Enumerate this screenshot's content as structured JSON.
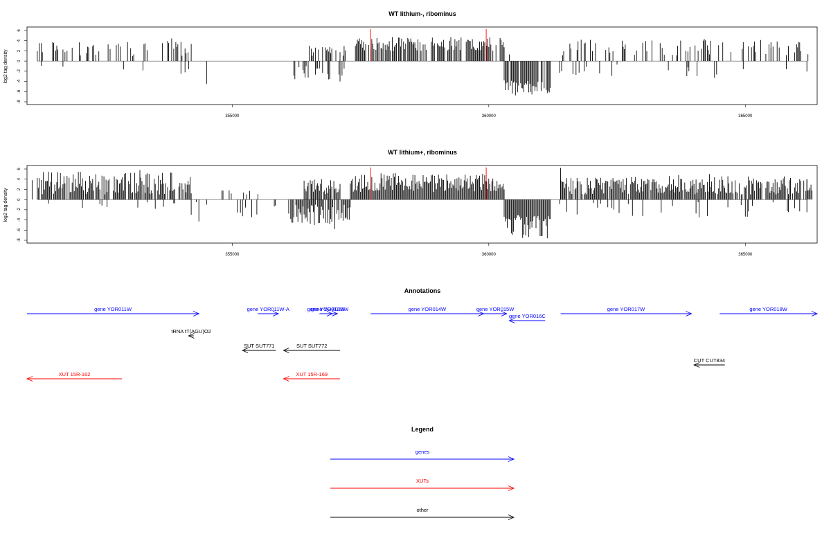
{
  "chart_data": [
    {
      "type": "bar",
      "title": "WT lithium-, ribominus",
      "ylabel": "log2 tag density",
      "xlim": [
        351000,
        366400
      ],
      "ylim": [
        -8,
        6
      ],
      "xticks": [
        "355000",
        "360000",
        "365000"
      ],
      "xtick_values": [
        355000,
        360000,
        365000
      ],
      "yticks": [
        "-8",
        "-6",
        "-4",
        "-2",
        "0",
        "2",
        "4",
        "6"
      ],
      "ytick_values": [
        -8,
        -6,
        -4,
        -2,
        0,
        2,
        4,
        6
      ],
      "bar_color": "#000000",
      "highlight_color": "#ff0000",
      "highlights": [
        {
          "x": 357700,
          "y": 6.3
        },
        {
          "x": 359950,
          "y": 6.3
        }
      ],
      "positive": {
        "note": "forward strand tag density per position",
        "regions": [
          [
            351200,
            354200,
            0.25,
            1,
            4.5,
            11
          ],
          [
            357400,
            360300,
            0.75,
            2,
            4.7,
            23
          ],
          [
            361400,
            366300,
            0.25,
            1,
            4.2,
            37
          ],
          [
            356500,
            357200,
            0.5,
            1,
            3.0,
            41
          ]
        ],
        "spikes": [
          [
            351500,
            3.7
          ],
          [
            352200,
            2.7
          ],
          [
            353300,
            3.5
          ],
          [
            353900,
            3.7
          ],
          [
            358900,
            4.6
          ],
          [
            360400,
            1.3
          ],
          [
            363000,
            3.6
          ],
          [
            364200,
            4.3
          ],
          [
            365500,
            3.7
          ],
          [
            366000,
            3.3
          ]
        ]
      },
      "negative": {
        "note": "reverse strand tag density per position",
        "regions": [
          [
            360300,
            361200,
            0.75,
            -3.5,
            -7.0,
            53
          ],
          [
            356200,
            357200,
            0.3,
            -1.0,
            -4.0,
            59
          ],
          [
            351200,
            354300,
            0.05,
            -0.5,
            -2.5,
            61
          ],
          [
            361300,
            366300,
            0.06,
            -0.5,
            -3.0,
            67
          ]
        ],
        "spikes": [
          [
            351700,
            -1.1
          ],
          [
            354000,
            -2.5
          ],
          [
            354150,
            -1.6
          ],
          [
            354500,
            -4.5
          ],
          [
            356300,
            -1.2
          ],
          [
            356900,
            -3.5
          ],
          [
            357100,
            -4.0
          ],
          [
            362400,
            -2.9
          ],
          [
            363500,
            -1.8
          ],
          [
            364400,
            -3.3
          ],
          [
            365800,
            -1.6
          ]
        ]
      }
    },
    {
      "type": "bar",
      "title": "WT lithium+, ribominus",
      "ylabel": "log2 tag density",
      "xlim": [
        351000,
        366400
      ],
      "ylim": [
        -8,
        6
      ],
      "xticks": [
        "355000",
        "360000",
        "365000"
      ],
      "xtick_values": [
        355000,
        360000,
        365000
      ],
      "yticks": [
        "-8",
        "-6",
        "-4",
        "-2",
        "0",
        "2",
        "4",
        "6"
      ],
      "ytick_values": [
        -8,
        -6,
        -4,
        -2,
        0,
        2,
        4,
        6
      ],
      "bar_color": "#000000",
      "highlight_color": "#ff0000",
      "highlights": [
        {
          "x": 357700,
          "y": 6.3
        },
        {
          "x": 359950,
          "y": 6.3
        }
      ],
      "positive": {
        "note": "forward strand tag density per position",
        "regions": [
          [
            351200,
            354200,
            0.8,
            1,
            5.5,
            71
          ],
          [
            356400,
            357100,
            0.85,
            1,
            4.0,
            73
          ],
          [
            357300,
            360300,
            1.0,
            1.5,
            5.2,
            79
          ],
          [
            361400,
            366300,
            0.9,
            1,
            4.6,
            83
          ],
          [
            354400,
            355500,
            0.15,
            0.5,
            2.5,
            89
          ]
        ],
        "spikes": [
          [
            351100,
            3.8
          ],
          [
            351650,
            5.2
          ],
          [
            353200,
            5.8
          ],
          [
            361400,
            6.2
          ],
          [
            363700,
            4.8
          ],
          [
            364300,
            5.0
          ],
          [
            365700,
            3.8
          ],
          [
            366200,
            4.0
          ]
        ]
      },
      "negative": {
        "note": "reverse strand tag density per position",
        "regions": [
          [
            360300,
            361200,
            1.0,
            -3.0,
            -8.0,
            97
          ],
          [
            356100,
            357300,
            0.9,
            -1.0,
            -5.0,
            101
          ],
          [
            355100,
            355900,
            0.3,
            -1.0,
            -3.5,
            103
          ],
          [
            351200,
            354500,
            0.08,
            -0.5,
            -2.5,
            107
          ],
          [
            361300,
            366300,
            0.12,
            -0.5,
            -3.5,
            109
          ]
        ],
        "spikes": [
          [
            354200,
            -3.0
          ],
          [
            354350,
            -4.3
          ],
          [
            356600,
            -5.0
          ],
          [
            357000,
            -5.8
          ],
          [
            364100,
            -3.5
          ],
          [
            366200,
            -2.5
          ]
        ]
      }
    },
    {
      "type": "diagram",
      "title": "Annotations",
      "xlim": [
        351000,
        366400
      ],
      "tracks": [
        {
          "name": "genes",
          "color": "#0000ff",
          "items": [
            {
              "label": "gene YOR011W",
              "x0": 351000,
              "x1": 354350,
              "row": 0,
              "dir": "right"
            },
            {
              "label": "gene YOR011W-A",
              "x0": 355500,
              "x1": 355900,
              "row": 0,
              "dir": "right"
            },
            {
              "label": "gene YOR012W",
              "x0": 356700,
              "x1": 356950,
              "row": 0,
              "dir": "right"
            },
            {
              "label": "gene YOR013W",
              "x0": 356750,
              "x1": 357050,
              "row": 0,
              "dir": "right"
            },
            {
              "label": "gene YOR014W",
              "x0": 357700,
              "x1": 359900,
              "row": 0,
              "dir": "right"
            },
            {
              "label": "gene YOR015W",
              "x0": 359900,
              "x1": 360350,
              "row": 0,
              "dir": "right"
            },
            {
              "label": "gene YOR016C",
              "x0": 360400,
              "x1": 361100,
              "row": 1,
              "dir": "left"
            },
            {
              "label": "gene YOR017W",
              "x0": 361400,
              "x1": 363950,
              "row": 0,
              "dir": "right"
            },
            {
              "label": "gene YOR018W",
              "x0": 364500,
              "x1": 367100,
              "row": 0,
              "dir": "right"
            }
          ]
        },
        {
          "name": "other",
          "color": "#000000",
          "items": [
            {
              "label": "tRNA tT(AGU)O2",
              "x0": 354150,
              "x1": 354250,
              "row": 2,
              "dir": "left"
            },
            {
              "label": "SUT SUT771",
              "x0": 355200,
              "x1": 355850,
              "row": 3,
              "dir": "left"
            },
            {
              "label": "SUT SUT772",
              "x0": 356000,
              "x1": 357100,
              "row": 3,
              "dir": "left"
            },
            {
              "label": "CUT CUT834",
              "x0": 364000,
              "x1": 364600,
              "row": 4,
              "dir": "left"
            }
          ]
        },
        {
          "name": "XUTs",
          "color": "#ff0000",
          "items": [
            {
              "label": "XUT 15R-162",
              "x0": 351000,
              "x1": 352850,
              "row": 5,
              "dir": "left"
            },
            {
              "label": "XUT 15R-169",
              "x0": 356000,
              "x1": 357100,
              "row": 5,
              "dir": "left"
            }
          ]
        }
      ]
    },
    {
      "type": "legend",
      "title": "Legend",
      "entries": [
        {
          "label": "genes",
          "color": "#0000ff"
        },
        {
          "label": "XUTs",
          "color": "#ff0000"
        },
        {
          "label": "other",
          "color": "#000000"
        }
      ]
    }
  ]
}
